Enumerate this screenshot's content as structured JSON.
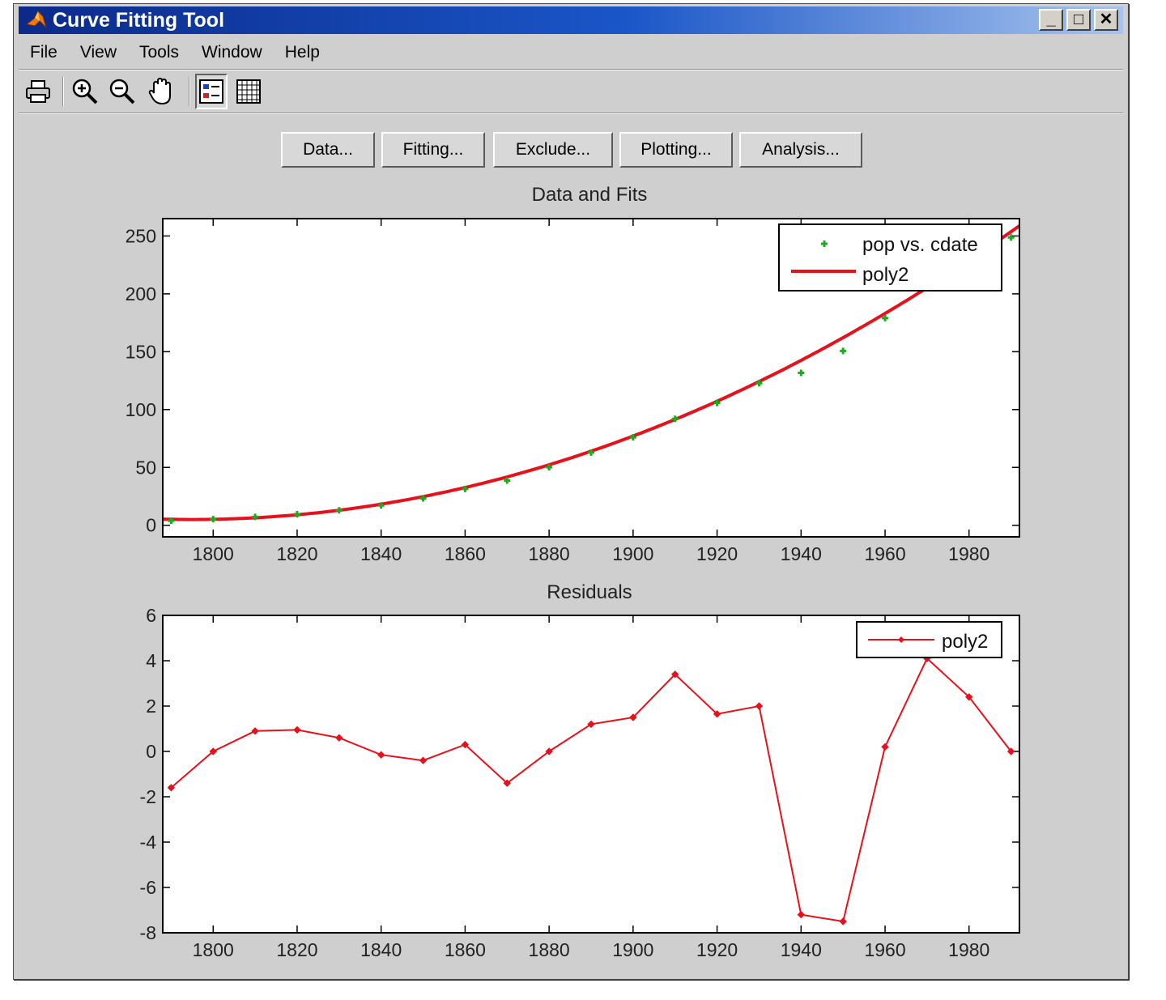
{
  "window": {
    "title": "Curve Fitting Tool",
    "minimize_glyph": "_",
    "maximize_glyph": "□",
    "close_glyph": "✕"
  },
  "menu": [
    "File",
    "View",
    "Tools",
    "Window",
    "Help"
  ],
  "toolbar_icons": [
    "print-icon",
    "zoom-in-icon",
    "zoom-out-icon",
    "pan-hand-icon",
    "legend-toggle-icon",
    "grid-toggle-icon"
  ],
  "buttons": {
    "data": "Data...",
    "fitting": "Fitting...",
    "exclude": "Exclude...",
    "plotting": "Plotting...",
    "analysis": "Analysis..."
  },
  "colors": {
    "fit_line": "#e8101a",
    "data_points": "#1faa1f",
    "residual_line": "#e8101a"
  },
  "chart_data": [
    {
      "type": "line",
      "title": "Data and Fits",
      "xlabel": "",
      "ylabel": "",
      "xlim": [
        1788,
        1992
      ],
      "ylim": [
        -10,
        265
      ],
      "xticks": [
        1800,
        1820,
        1840,
        1860,
        1880,
        1900,
        1920,
        1940,
        1960,
        1980
      ],
      "yticks": [
        0,
        50,
        100,
        150,
        200,
        250
      ],
      "legend_position": "top-right",
      "series": [
        {
          "name": "pop vs. cdate",
          "kind": "scatter",
          "x": [
            1790,
            1800,
            1810,
            1820,
            1830,
            1840,
            1850,
            1860,
            1870,
            1880,
            1890,
            1900,
            1910,
            1920,
            1930,
            1940,
            1950,
            1960,
            1970,
            1980,
            1990
          ],
          "y": [
            3.9,
            5.3,
            7.2,
            9.6,
            12.9,
            17.1,
            23.2,
            31.4,
            38.6,
            50.2,
            62.9,
            76.0,
            92.0,
            105.7,
            122.8,
            131.7,
            150.7,
            179.0,
            205.0,
            226.5,
            248.7
          ]
        },
        {
          "name": "poly2",
          "kind": "line",
          "coef": {
            "x0": 1795,
            "a": 0.00654,
            "b": 5.0
          },
          "x_range": [
            1788,
            1992
          ]
        }
      ]
    },
    {
      "type": "line",
      "title": "Residuals",
      "xlabel": "",
      "ylabel": "",
      "xlim": [
        1788,
        1992
      ],
      "ylim": [
        -8,
        6
      ],
      "xticks": [
        1800,
        1820,
        1840,
        1860,
        1880,
        1900,
        1920,
        1940,
        1960,
        1980
      ],
      "yticks": [
        6,
        4,
        2,
        0,
        -2,
        -4,
        -6,
        -8
      ],
      "legend_position": "top-right",
      "series": [
        {
          "name": "poly2",
          "kind": "line-marker",
          "x": [
            1790,
            1800,
            1810,
            1820,
            1830,
            1840,
            1850,
            1860,
            1870,
            1880,
            1890,
            1900,
            1910,
            1920,
            1930,
            1940,
            1950,
            1960,
            1970,
            1980,
            1990
          ],
          "y": [
            -1.6,
            0.0,
            0.9,
            0.95,
            0.6,
            -0.15,
            -0.4,
            0.3,
            -1.4,
            0.0,
            1.2,
            1.5,
            3.4,
            1.65,
            2.0,
            -7.2,
            -7.5,
            0.2,
            4.1,
            2.4,
            0.0
          ]
        }
      ]
    }
  ]
}
